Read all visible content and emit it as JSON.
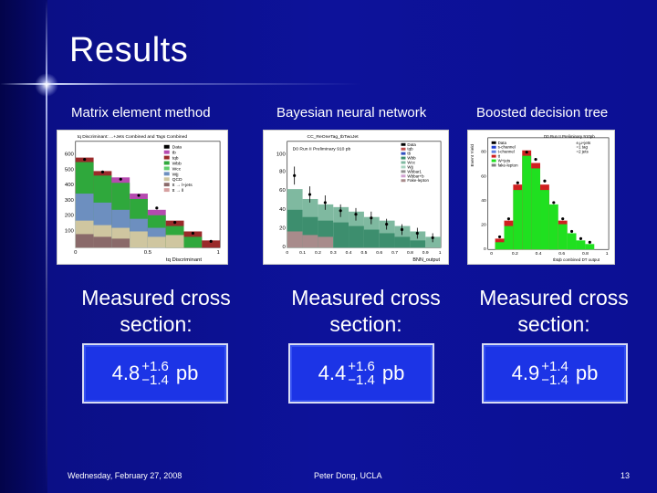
{
  "slide": {
    "title": "Results",
    "columns": [
      {
        "method": "Matrix element method",
        "measured_label": "Measured cross section:",
        "value": "4.8",
        "err_up": "+1.6",
        "err_down": "−1.4",
        "unit": "pb",
        "plot": {
          "header": "tq Discriminant: ...+Jets Combined and Tags Combined",
          "legend": [
            "Data",
            "tb",
            "tqb",
            "Wbb",
            "Wcc",
            "Wjj",
            "QCD",
            "tt → l+jets",
            "tt → ll"
          ],
          "y_ticks": [
            "100",
            "200",
            "300",
            "400",
            "500",
            "600"
          ],
          "x_ticks": [
            "0",
            "0.5",
            "1"
          ],
          "xlabel": "tq Discriminant"
        }
      },
      {
        "method": "Bayesian neural network",
        "measured_label": "Measured cross section:",
        "value": "4.4",
        "err_up": "+1.6",
        "err_down": "−1.4",
        "unit": "pb",
        "plot": {
          "header": "CC_ReOneTag_tbTwoJet",
          "subheader": "D0 Run II Preliminary 910 pb",
          "legend": [
            "Data",
            "tqb",
            "tb",
            "Wbb",
            "Wcc",
            "Wjj",
            "Wbbar1",
            "Wbbar+b",
            "Fake-lepton"
          ],
          "y_ticks": [
            "0",
            "20",
            "40",
            "60",
            "80",
            "100"
          ],
          "x_ticks": [
            "0",
            "0.1",
            "0.2",
            "0.3",
            "0.4",
            "0.5",
            "0.6",
            "0.7",
            "0.8",
            "0.9",
            "1"
          ],
          "xlabel": "BNN_output"
        }
      },
      {
        "method": "Boosted decision tree",
        "measured_label": "Measured cross section:",
        "value": "4.9",
        "err_up": "+1.4",
        "err_down": "−1.4",
        "unit": "pb",
        "plot": {
          "header": "D0 Run II Preliminary 910pb",
          "legend": [
            "Data",
            "s-channel",
            "t-channel",
            "tt",
            "W+jets",
            "fake-lepton"
          ],
          "legend_right": [
            "e,μ+jets",
            "=1 tag",
            "=2 jets"
          ],
          "y_ticks": [
            "0",
            "20",
            "40",
            "60",
            "80"
          ],
          "ylabel": "Event Yield",
          "x_ticks": [
            "0",
            "0.2",
            "0.4",
            "0.6",
            "0.8",
            "1"
          ],
          "xlabel": "tbtqb combined DT output"
        }
      }
    ],
    "footer": {
      "date": "Wednesday, February 27, 2008",
      "author": "Peter Dong, UCLA",
      "page_number": "13"
    }
  },
  "colors": {
    "background": "#0d129a",
    "box_fill": "#1c34e6",
    "text": "#ffffff"
  }
}
